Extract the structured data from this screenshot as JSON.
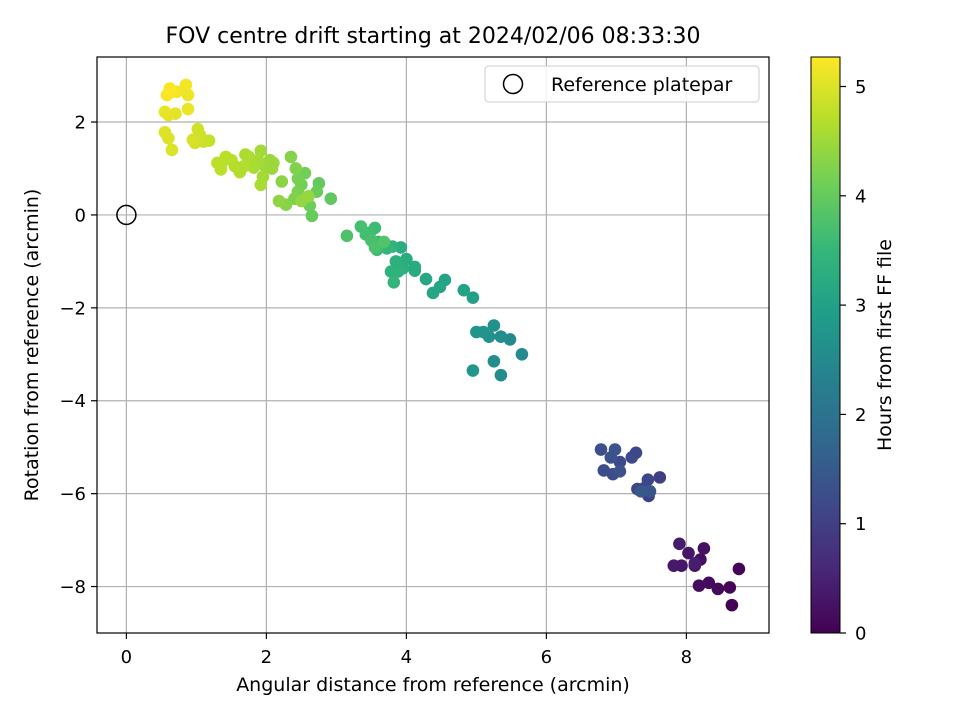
{
  "chart_data": {
    "type": "scatter",
    "title": "FOV centre drift starting at 2024/02/06 08:33:30",
    "xlabel": "Angular distance from reference (arcmin)",
    "ylabel": "Rotation from reference (arcmin)",
    "xlim": [
      -0.42,
      9.18
    ],
    "ylim": [
      -9.0,
      3.4
    ],
    "xticks": [
      0,
      2,
      4,
      6,
      8
    ],
    "yticks": [
      -8,
      -6,
      -4,
      -2,
      0,
      2
    ],
    "xtick_labels": [
      "0",
      "2",
      "4",
      "6",
      "8"
    ],
    "ytick_labels": [
      "−8",
      "−6",
      "−4",
      "−2",
      "0",
      "2"
    ],
    "grid": true,
    "legend": {
      "position": "top-right",
      "label": "Reference platepar"
    },
    "reference_point": {
      "x": 0,
      "y": 0
    },
    "colorbar": {
      "label": "Hours from first FF file",
      "range": [
        0,
        5.27
      ],
      "ticks": [
        0,
        1,
        2,
        3,
        4,
        5
      ],
      "tick_labels": [
        "0",
        "1",
        "2",
        "3",
        "4",
        "5"
      ],
      "colormap": "viridis",
      "colormap_stops": [
        "#440154",
        "#482878",
        "#3e4989",
        "#31688e",
        "#26828e",
        "#1f9e89",
        "#35b779",
        "#6ece58",
        "#b5de2b",
        "#fde725"
      ]
    },
    "points": [
      [
        8.65,
        -8.4,
        0.02
      ],
      [
        8.75,
        -7.62,
        0.05
      ],
      [
        8.62,
        -8.02,
        0.08
      ],
      [
        8.45,
        -8.05,
        0.11
      ],
      [
        8.32,
        -7.92,
        0.14
      ],
      [
        8.18,
        -7.98,
        0.17
      ],
      [
        8.2,
        -7.42,
        0.2
      ],
      [
        8.25,
        -7.18,
        0.24
      ],
      [
        8.12,
        -7.55,
        0.27
      ],
      [
        8.03,
        -7.28,
        0.3
      ],
      [
        7.93,
        -7.55,
        0.33
      ],
      [
        7.82,
        -7.55,
        0.36
      ],
      [
        7.9,
        -7.08,
        0.4
      ],
      [
        8.12,
        -7.5,
        0.43
      ],
      [
        7.62,
        -5.65,
        1.0
      ],
      [
        7.46,
        -6.05,
        1.03
      ],
      [
        7.4,
        -5.88,
        1.06
      ],
      [
        7.3,
        -5.9,
        1.09
      ],
      [
        7.45,
        -5.7,
        1.12
      ],
      [
        7.28,
        -5.12,
        1.15
      ],
      [
        7.22,
        -5.22,
        1.18
      ],
      [
        7.05,
        -5.32,
        1.21
      ],
      [
        6.95,
        -5.58,
        1.24
      ],
      [
        6.82,
        -5.5,
        1.27
      ],
      [
        6.78,
        -5.05,
        1.3
      ],
      [
        6.92,
        -5.22,
        1.33
      ],
      [
        7.05,
        -5.52,
        1.36
      ],
      [
        6.98,
        -5.05,
        1.39
      ],
      [
        7.48,
        -5.95,
        1.42
      ],
      [
        7.35,
        -5.95,
        1.45
      ],
      [
        5.65,
        -3.0,
        2.5
      ],
      [
        5.48,
        -2.68,
        2.53
      ],
      [
        5.35,
        -3.45,
        2.56
      ],
      [
        5.25,
        -3.15,
        2.59
      ],
      [
        5.35,
        -2.62,
        2.62
      ],
      [
        5.25,
        -2.38,
        2.65
      ],
      [
        5.18,
        -2.62,
        2.68
      ],
      [
        5.1,
        -2.52,
        2.71
      ],
      [
        5.0,
        -2.52,
        2.74
      ],
      [
        4.95,
        -3.35,
        2.77
      ],
      [
        4.95,
        -1.78,
        3.0
      ],
      [
        4.82,
        -1.62,
        3.03
      ],
      [
        4.55,
        -1.4,
        3.06
      ],
      [
        4.48,
        -1.55,
        3.09
      ],
      [
        4.38,
        -1.68,
        3.12
      ],
      [
        4.28,
        -1.38,
        3.15
      ],
      [
        4.12,
        -1.12,
        3.18
      ],
      [
        4.12,
        -1.2,
        3.21
      ],
      [
        4.0,
        -0.95,
        3.24
      ],
      [
        3.92,
        -0.7,
        3.27
      ],
      [
        3.95,
        -1.15,
        3.3
      ],
      [
        3.85,
        -1.0,
        3.33
      ],
      [
        3.88,
        -1.22,
        3.36
      ],
      [
        3.78,
        -1.22,
        3.39
      ],
      [
        3.8,
        -0.68,
        3.42
      ],
      [
        3.82,
        -1.45,
        3.45
      ],
      [
        3.72,
        -0.72,
        3.48
      ],
      [
        3.65,
        -0.65,
        3.51
      ],
      [
        3.6,
        -0.58,
        3.54
      ],
      [
        3.58,
        -0.75,
        3.57
      ],
      [
        3.55,
        -0.28,
        3.6
      ],
      [
        3.48,
        -0.38,
        3.63
      ],
      [
        3.42,
        -0.42,
        3.66
      ],
      [
        3.35,
        -0.25,
        3.69
      ],
      [
        3.5,
        -0.55,
        3.72
      ],
      [
        3.55,
        -0.7,
        3.75
      ],
      [
        3.15,
        -0.45,
        3.78
      ],
      [
        3.68,
        -0.58,
        3.81
      ],
      [
        2.92,
        0.35,
        3.95
      ],
      [
        2.75,
        0.68,
        3.98
      ],
      [
        2.65,
        -0.02,
        4.01
      ],
      [
        2.72,
        0.5,
        4.04
      ],
      [
        2.62,
        0.2,
        4.07
      ],
      [
        2.55,
        0.9,
        4.1
      ],
      [
        2.5,
        0.65,
        4.13
      ],
      [
        2.45,
        0.78,
        4.16
      ],
      [
        2.45,
        0.5,
        4.19
      ],
      [
        2.4,
        0.35,
        4.22
      ],
      [
        2.42,
        1.0,
        4.25
      ],
      [
        2.35,
        1.25,
        4.28
      ],
      [
        2.28,
        0.22,
        4.31
      ],
      [
        2.22,
        0.72,
        4.34
      ],
      [
        2.18,
        0.3,
        4.37
      ],
      [
        2.5,
        0.3,
        4.4
      ],
      [
        2.6,
        0.4,
        4.43
      ],
      [
        2.1,
        1.12,
        4.46
      ],
      [
        2.05,
        1.18,
        4.48
      ],
      [
        1.98,
        1.05,
        4.5
      ],
      [
        1.92,
        1.38,
        4.52
      ],
      [
        1.95,
        0.82,
        4.54
      ],
      [
        1.88,
        1.18,
        4.56
      ],
      [
        1.82,
        1.02,
        4.58
      ],
      [
        1.75,
        1.25,
        4.6
      ],
      [
        1.7,
        1.3,
        4.62
      ],
      [
        1.68,
        1.05,
        4.64
      ],
      [
        1.62,
        0.92,
        4.66
      ],
      [
        1.55,
        1.05,
        4.68
      ],
      [
        1.5,
        1.18,
        4.7
      ],
      [
        1.42,
        1.25,
        4.72
      ],
      [
        1.35,
        1.05,
        4.74
      ],
      [
        1.3,
        1.12,
        4.76
      ],
      [
        1.92,
        0.65,
        4.58
      ],
      [
        2.08,
        1.0,
        4.48
      ],
      [
        1.35,
        0.98,
        4.74
      ],
      [
        1.18,
        1.6,
        4.82
      ],
      [
        1.1,
        1.58,
        4.85
      ],
      [
        1.05,
        1.72,
        4.88
      ],
      [
        1.02,
        1.85,
        4.9
      ],
      [
        0.98,
        1.55,
        4.92
      ],
      [
        0.95,
        1.62,
        4.95
      ],
      [
        0.65,
        1.4,
        4.98
      ],
      [
        0.6,
        1.65,
        5.0
      ],
      [
        0.55,
        1.78,
        5.02
      ],
      [
        0.7,
        2.18,
        5.05
      ],
      [
        0.6,
        2.15,
        5.08
      ],
      [
        0.55,
        2.22,
        5.1
      ],
      [
        0.88,
        2.28,
        5.12
      ],
      [
        0.88,
        2.58,
        5.15
      ],
      [
        0.85,
        2.8,
        5.18
      ],
      [
        0.72,
        2.65,
        5.2
      ],
      [
        0.65,
        2.65,
        5.22
      ],
      [
        0.58,
        2.58,
        5.24
      ],
      [
        0.62,
        2.72,
        5.26
      ]
    ]
  }
}
